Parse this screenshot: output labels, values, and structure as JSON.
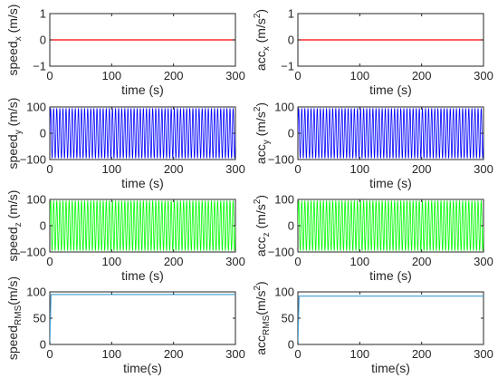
{
  "chart_data": [
    {
      "id": "speed-x",
      "type": "line",
      "ylabel_main": "speed",
      "ylabel_sub": "x",
      "ylabel_unit": " (m/s)",
      "ylabel_sup": "",
      "ylabel_tail": "",
      "xlabel": "time (s)",
      "xlim": [
        0,
        300
      ],
      "ylim": [
        -1,
        1
      ],
      "xticks": [
        "0",
        "100",
        "200",
        "300"
      ],
      "yticks": [
        "-1",
        "0",
        "1"
      ],
      "series": [
        {
          "kind": "constant",
          "value": 0,
          "color": "#ff0000"
        }
      ]
    },
    {
      "id": "acc-x",
      "type": "line",
      "ylabel_main": "acc",
      "ylabel_sub": "x",
      "ylabel_unit": " (m/s",
      "ylabel_sup": "2",
      "ylabel_tail": ")",
      "xlabel": "time (s)",
      "xlim": [
        0,
        300
      ],
      "ylim": [
        -1,
        1
      ],
      "xticks": [
        "0",
        "100",
        "200",
        "300"
      ],
      "yticks": [
        "-1",
        "0",
        "1"
      ],
      "series": [
        {
          "kind": "constant",
          "value": 0,
          "color": "#ff0000"
        }
      ]
    },
    {
      "id": "speed-y",
      "type": "line",
      "ylabel_main": "speed",
      "ylabel_sub": "y",
      "ylabel_unit": " (m/s)",
      "ylabel_sup": "",
      "ylabel_tail": "",
      "xlabel": "time (s)",
      "xlim": [
        0,
        300
      ],
      "ylim": [
        -100,
        100
      ],
      "xticks": [
        "0",
        "100",
        "200",
        "300"
      ],
      "yticks": [
        "-100",
        "0",
        "100"
      ],
      "series": [
        {
          "kind": "oscillation",
          "amplitude": 95,
          "cycles": 60,
          "color": "#0000ff"
        }
      ]
    },
    {
      "id": "acc-y",
      "type": "line",
      "ylabel_main": "acc",
      "ylabel_sub": "y",
      "ylabel_unit": " (m/s",
      "ylabel_sup": "2",
      "ylabel_tail": ")",
      "xlabel": "time (s)",
      "xlim": [
        0,
        300
      ],
      "ylim": [
        -100,
        100
      ],
      "xticks": [
        "0",
        "100",
        "200",
        "300"
      ],
      "yticks": [
        "-100",
        "0",
        "100"
      ],
      "series": [
        {
          "kind": "oscillation",
          "amplitude": 95,
          "cycles": 60,
          "color": "#0000ff"
        }
      ]
    },
    {
      "id": "speed-z",
      "type": "line",
      "ylabel_main": "speed",
      "ylabel_sub": "z",
      "ylabel_unit": " (m/s)",
      "ylabel_sup": "",
      "ylabel_tail": "",
      "xlabel": "time (s)",
      "xlim": [
        0,
        300
      ],
      "ylim": [
        -100,
        100
      ],
      "xticks": [
        "0",
        "100",
        "200",
        "300"
      ],
      "yticks": [
        "-100",
        "0",
        "100"
      ],
      "series": [
        {
          "kind": "oscillation",
          "amplitude": 95,
          "cycles": 60,
          "color": "#00ff00"
        }
      ]
    },
    {
      "id": "acc-z",
      "type": "line",
      "ylabel_main": "acc",
      "ylabel_sub": "z",
      "ylabel_unit": " (m/s",
      "ylabel_sup": "2",
      "ylabel_tail": ")",
      "xlabel": "time (s)",
      "xlim": [
        0,
        300
      ],
      "ylim": [
        -100,
        100
      ],
      "xticks": [
        "0",
        "100",
        "200",
        "300"
      ],
      "yticks": [
        "-100",
        "0",
        "100"
      ],
      "series": [
        {
          "kind": "oscillation",
          "amplitude": 95,
          "cycles": 60,
          "color": "#00ff00"
        }
      ]
    },
    {
      "id": "speed-rms",
      "type": "line",
      "ylabel_main": "speed",
      "ylabel_sub": "RMS",
      "ylabel_unit": "(m/s)",
      "ylabel_sup": "",
      "ylabel_tail": "",
      "xlabel": "time(s)",
      "xlim": [
        0,
        300
      ],
      "ylim": [
        0,
        100
      ],
      "xticks": [
        "0",
        "100",
        "200",
        "300"
      ],
      "yticks": [
        "0",
        "50",
        "100"
      ],
      "series": [
        {
          "kind": "step",
          "x": [
            0,
            2,
            300
          ],
          "y": [
            0,
            95,
            95
          ],
          "color": "#4da6d9"
        }
      ]
    },
    {
      "id": "acc-rms",
      "type": "line",
      "ylabel_main": "acc",
      "ylabel_sub": "RMS",
      "ylabel_unit": "(m/s",
      "ylabel_sup": "2",
      "ylabel_tail": ")",
      "xlabel": "time(s)",
      "xlim": [
        0,
        300
      ],
      "ylim": [
        0,
        100
      ],
      "xticks": [
        "0",
        "100",
        "200",
        "300"
      ],
      "yticks": [
        "0",
        "50",
        "100"
      ],
      "series": [
        {
          "kind": "step",
          "x": [
            0,
            2,
            300
          ],
          "y": [
            0,
            92,
            92
          ],
          "color": "#4da6d9"
        }
      ]
    }
  ]
}
